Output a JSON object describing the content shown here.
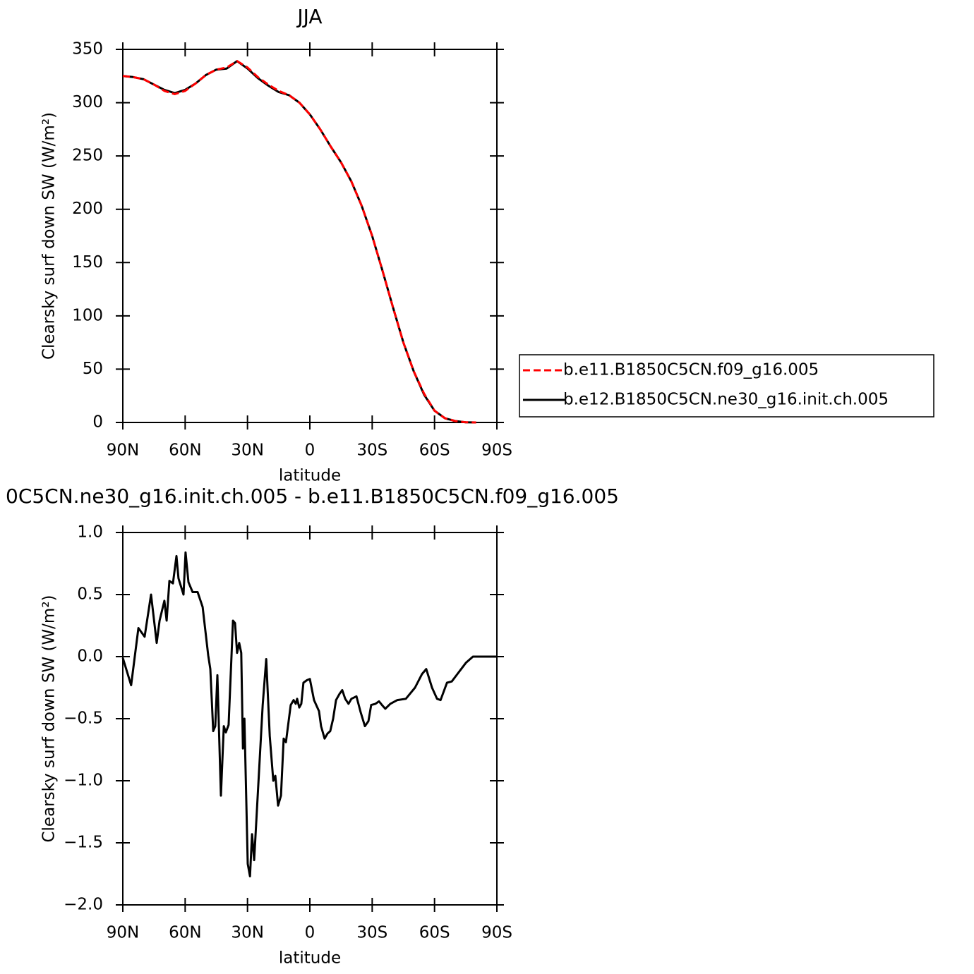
{
  "chart_data": [
    {
      "type": "line",
      "title": "JJA",
      "xlabel": "latitude",
      "ylabel": "Clearsky surf down SW (W/m²)",
      "x": [
        90,
        85,
        80,
        75,
        70,
        65,
        60,
        55,
        50,
        45,
        40,
        35,
        30,
        25,
        20,
        15,
        10,
        5,
        0,
        -5,
        -10,
        -15,
        -20,
        -25,
        -30,
        -35,
        -40,
        -45,
        -50,
        -55,
        -60,
        -65,
        -70,
        -75,
        -80
      ],
      "series": [
        {
          "name": "b.e11.B1850C5CN.f09_g16.005",
          "color": "#ff0000",
          "linestyle": "dashed",
          "values": [
            325,
            324,
            322,
            317,
            311,
            308,
            311,
            318,
            326,
            331,
            333,
            339,
            333,
            324,
            317,
            311,
            307,
            300,
            289,
            275,
            259,
            244,
            226,
            203,
            175,
            142,
            108,
            75,
            48,
            27,
            11,
            4,
            1.3,
            0.2,
            0
          ]
        },
        {
          "name": "b.e12.B1850C5CN.ne30_g16.init.ch.005",
          "color": "#000000",
          "linestyle": "solid",
          "values": [
            325,
            324,
            322,
            317,
            312,
            309,
            312,
            318,
            326,
            331,
            332,
            339,
            332,
            323,
            316,
            310,
            307,
            300,
            289,
            275,
            259,
            244,
            226,
            203,
            175,
            142,
            108,
            75,
            48,
            26,
            11,
            4,
            1.3,
            0.2,
            0
          ]
        }
      ],
      "xlim": [
        90,
        -90
      ],
      "xticks": [
        {
          "value": 90,
          "label": "90N"
        },
        {
          "value": 60,
          "label": "60N"
        },
        {
          "value": 30,
          "label": "30N"
        },
        0,
        {
          "value": -30,
          "label": "30S"
        },
        {
          "value": -60,
          "label": "60S"
        },
        {
          "value": -90,
          "label": "90S"
        }
      ],
      "ylim": [
        0,
        350
      ],
      "yticks": [
        0,
        50,
        100,
        150,
        200,
        250,
        300,
        350
      ],
      "legend": "right"
    },
    {
      "type": "line",
      "title": "0C5CN.ne30_g16.init.ch.005 - b.e11.B1850C5CN.f09_g16.005",
      "xlabel": "latitude",
      "ylabel": "Clearsky surf down SW (W/m²)",
      "x": [
        90,
        86,
        82.5,
        79.5,
        76.4,
        73.7,
        72.3,
        70,
        68.9,
        67.6,
        65.9,
        64.2,
        63.2,
        60.8,
        59.8,
        58.4,
        56.4,
        54,
        51.6,
        48.9,
        47.9,
        46.5,
        45.5,
        44.5,
        42.8,
        41.4,
        40.4,
        39.1,
        37,
        36,
        35,
        34,
        33,
        32.2,
        31.5,
        29.9,
        28.8,
        27.8,
        26.8,
        22.7,
        21,
        19.3,
        17.6,
        16.6,
        15.3,
        13.9,
        12.6,
        11.5,
        9.2,
        7.8,
        6.8,
        6.1,
        5.1,
        4.1,
        3.1,
        1.4,
        0,
        -2,
        -4.4,
        -5.4,
        -7.1,
        -8.5,
        -9.8,
        -11.2,
        -12.6,
        -14.3,
        -15.6,
        -17,
        -18.6,
        -20,
        -22.4,
        -24.5,
        -26.5,
        -28.2,
        -29.5,
        -31.6,
        -33.3,
        -34.7,
        -36.3,
        -38.7,
        -42.1,
        -46.2,
        -50.6,
        -54,
        -56,
        -58.8,
        -61.2,
        -62.9,
        -66,
        -68.3,
        -71,
        -75.1,
        -78.5,
        -81.9,
        -90
      ],
      "series": [
        {
          "color": "#000000",
          "linestyle": "solid",
          "values": [
            -0.01,
            -0.23,
            0.23,
            0.16,
            0.5,
            0.11,
            0.29,
            0.45,
            0.29,
            0.61,
            0.59,
            0.81,
            0.63,
            0.5,
            0.84,
            0.6,
            0.52,
            0.52,
            0.4,
            0.01,
            -0.1,
            -0.6,
            -0.56,
            -0.15,
            -1.12,
            -0.56,
            -0.61,
            -0.55,
            0.29,
            0.27,
            0.03,
            0.11,
            0.03,
            -0.74,
            -0.5,
            -1.67,
            -1.77,
            -1.43,
            -1.64,
            -0.39,
            -0.02,
            -0.64,
            -1.0,
            -0.96,
            -1.2,
            -1.12,
            -0.66,
            -0.69,
            -0.39,
            -0.35,
            -0.38,
            -0.34,
            -0.41,
            -0.38,
            -0.21,
            -0.19,
            -0.18,
            -0.35,
            -0.44,
            -0.56,
            -0.66,
            -0.62,
            -0.6,
            -0.5,
            -0.35,
            -0.3,
            -0.27,
            -0.34,
            -0.38,
            -0.34,
            -0.32,
            -0.45,
            -0.56,
            -0.52,
            -0.39,
            -0.38,
            -0.36,
            -0.39,
            -0.42,
            -0.38,
            -0.35,
            -0.34,
            -0.25,
            -0.14,
            -0.1,
            -0.25,
            -0.34,
            -0.35,
            -0.21,
            -0.2,
            -0.14,
            -0.05,
            0,
            0,
            0
          ]
        }
      ],
      "xlim": [
        90,
        -90
      ],
      "xticks": [
        {
          "value": 90,
          "label": "90N"
        },
        {
          "value": 60,
          "label": "60N"
        },
        {
          "value": 30,
          "label": "30N"
        },
        0,
        {
          "value": -30,
          "label": "30S"
        },
        {
          "value": -60,
          "label": "60S"
        },
        {
          "value": -90,
          "label": "90S"
        }
      ],
      "ylim": [
        -2,
        1
      ],
      "yticks": [
        {
          "value": -2,
          "label": "−2.0"
        },
        {
          "value": -1.5,
          "label": "−1.5"
        },
        {
          "value": -1,
          "label": "−1.0"
        },
        {
          "value": -0.5,
          "label": "−0.5"
        },
        {
          "value": 0,
          "label": "0.0"
        },
        {
          "value": 0.5,
          "label": "0.5"
        },
        {
          "value": 1,
          "label": "1.0"
        }
      ]
    }
  ]
}
